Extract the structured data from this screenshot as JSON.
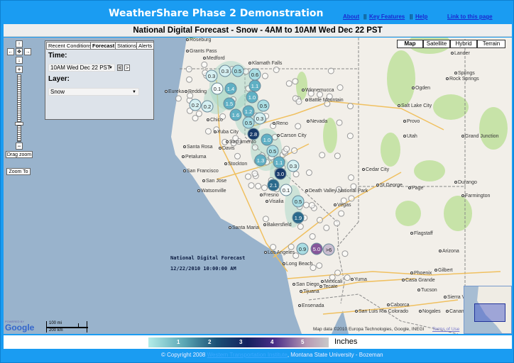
{
  "header": {
    "title": "WeatherShare Phase 2 Demonstration",
    "links": [
      "About",
      "Key Features",
      "Help",
      "Link to this page"
    ],
    "separator": "||"
  },
  "page_title": "National Digital Forecast - Snow - 4AM to 10AM Wed Dec 22 PST",
  "nav_controls": {
    "up": "↑",
    "left": "←",
    "center": "✥",
    "right": "→",
    "down": "↓",
    "zoom_in": "+",
    "zoom_out": "−",
    "drag_zoom": "Drag zoom",
    "zoom_to": "Zoom To",
    "zoom_level_fraction": 0.7
  },
  "panel": {
    "tabs": [
      "Recent Conditions",
      "Forecast",
      "Stations",
      "Alerts"
    ],
    "active_tab": "Forecast",
    "time_label": "Time:",
    "time_value": "10AM Wed Dec 22 PST",
    "prev": "<",
    "next": ">",
    "layer_label": "Layer:",
    "layer_value": "Snow"
  },
  "map_types": [
    "Map",
    "Satellite",
    "Hybrid",
    "Terrain"
  ],
  "active_map_type": "Map",
  "overlay": {
    "line1": "National Digital Forecast",
    "line2": "12/22/2010 10:00:00 AM"
  },
  "scale": {
    "mi": "100 mi",
    "km": "200 km"
  },
  "google_logo": "POWERED BY Google",
  "attribution": "Map data ©2010 Europa Technologies, Google, INEGI",
  "terms": "Terms of Use",
  "cities": [
    "Roseburg",
    "Grants Pass",
    "Medford",
    "Klamath Falls",
    "Eureka",
    "Redding",
    "Chico",
    "Yuba City",
    "Reno",
    "Carson City",
    "Santa Rosa",
    "Davis",
    "Sacramento",
    "Petaluma",
    "Stockton",
    "San Francisco",
    "San Jose",
    "Watsonville",
    "Fresno",
    "Visalia",
    "Bakersfield",
    "Santa Maria",
    "Los Angeles",
    "Long Beach",
    "San Diego",
    "Tijuana",
    "Tecate",
    "Ensenada",
    "Mexicali",
    "Yuma",
    "San Luis Rio Colorado",
    "Winnemucca",
    "Battle Mountain",
    "Nevada",
    "Vegas",
    "Death Valley National Park",
    "Cedar City",
    "St George",
    "Salt Lake City",
    "Provo",
    "Utah",
    "Springs",
    "Rock Springs",
    "Lander",
    "Page",
    "Durango",
    "Farmington",
    "Flagstaff",
    "Arizona",
    "Phoenix",
    "Gilbert",
    "Casa Grande",
    "Tucson",
    "Sierra Vista",
    "Nogales",
    "Caborca",
    "Cananea",
    "Grand Junction",
    "Ogden"
  ],
  "snow_markers": [
    "0.3",
    "0.5",
    "0.6",
    "1.1",
    "0.3",
    "0.1",
    "1.4",
    "1.0",
    "0.2",
    "0.2",
    "1.5",
    "1.6",
    "1.2",
    "0.5",
    "0.3",
    "0.5",
    "2.8",
    "1.0",
    "0.5",
    "1.3",
    "1.1",
    "3.0",
    "0.3",
    "2.1",
    "0.1",
    "0.5",
    "1.9",
    "0.9",
    "5.0",
    ">6"
  ],
  "legend": {
    "ticks": [
      "1",
      "2",
      "3",
      "4",
      "5"
    ],
    "unit": "Inches",
    "colors": [
      "#b2ece8",
      "#5aa6b4",
      "#1a4f74",
      "#13205e",
      "#4a2e88",
      "#b89ab4"
    ]
  },
  "footer": {
    "copyright": "© Copyright 2008",
    "institute": "Western Transportation Institute",
    "university": ", Montana State University - Bozeman"
  },
  "colors": {
    "header": "#1a9cf2",
    "ocean": "#99b3cc",
    "land": "#f2efe9"
  }
}
